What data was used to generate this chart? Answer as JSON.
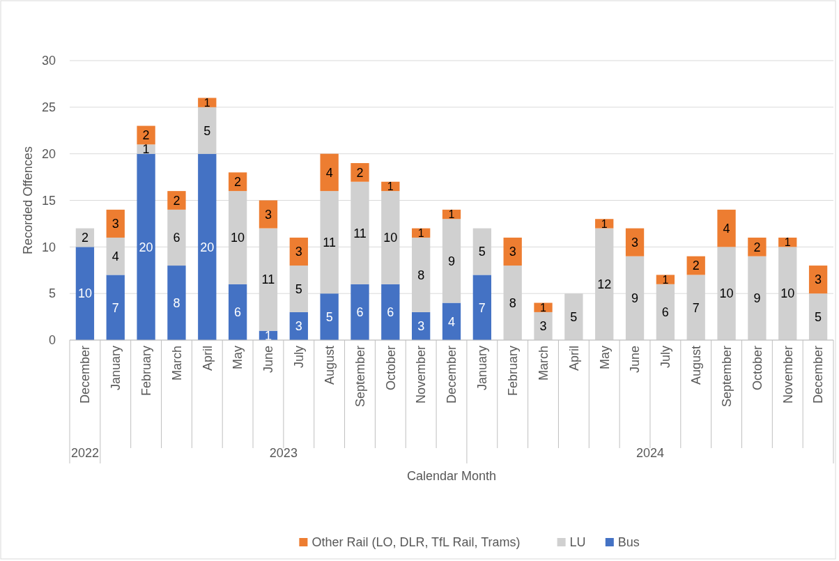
{
  "chart_data": {
    "type": "bar",
    "stacked": true,
    "xlabel": "Calendar Month",
    "ylabel": "Recorded Offences",
    "categories": [
      "December",
      "January",
      "February",
      "March",
      "April",
      "May",
      "June",
      "July",
      "August",
      "September",
      "October",
      "November",
      "December",
      "January",
      "February",
      "March",
      "April",
      "May",
      "June",
      "July",
      "August",
      "September",
      "October",
      "November",
      "December"
    ],
    "series": [
      {
        "name": "Bus",
        "color": "#4472c4",
        "values": [
          10,
          7,
          20,
          8,
          20,
          6,
          1,
          3,
          5,
          6,
          6,
          3,
          4,
          7,
          null,
          null,
          null,
          null,
          null,
          null,
          null,
          null,
          null,
          null,
          null
        ]
      },
      {
        "name": "LU",
        "color": "#d0d0d0",
        "values": [
          2,
          4,
          1,
          6,
          5,
          10,
          11,
          5,
          11,
          11,
          10,
          8,
          9,
          5,
          8,
          3,
          5,
          12,
          9,
          6,
          7,
          10,
          9,
          10,
          5
        ]
      },
      {
        "name": "Other Rail (LO, DLR, TfL Rail, Trams)",
        "color": "#ed7d31",
        "values": [
          null,
          3,
          2,
          2,
          1,
          2,
          3,
          3,
          4,
          2,
          1,
          1,
          1,
          null,
          3,
          1,
          null,
          1,
          3,
          1,
          2,
          4,
          2,
          1,
          3
        ]
      }
    ],
    "ylim": [
      0,
      30
    ],
    "yticks": [
      0,
      5,
      10,
      15,
      20,
      25,
      30
    ],
    "grid": "y",
    "legend": "bottom",
    "data_labels": true,
    "annotations": [
      "2022",
      "2023",
      "2024"
    ]
  }
}
